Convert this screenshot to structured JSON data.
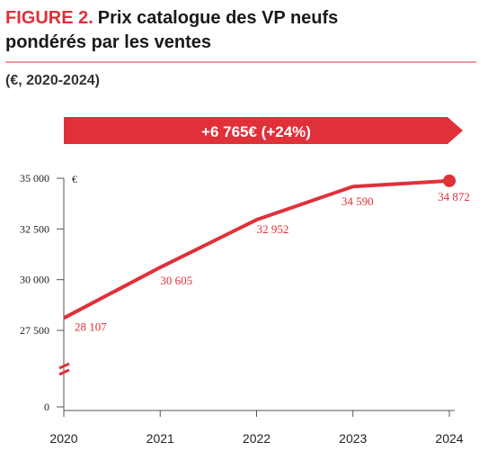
{
  "header": {
    "figure_label": "FIGURE 2.",
    "title_line1": "Prix catalogue des VP neufs",
    "title_line2": "pondérés par les ventes",
    "subtitle": "(€, 2020-2024)"
  },
  "banner": {
    "text": "+6 765€  (+24%)"
  },
  "colors": {
    "accent": "#e0303a",
    "axis": "#555555",
    "text": "#222222"
  },
  "chart_data": {
    "type": "line",
    "title": "Prix catalogue des VP neufs pondérés par les ventes",
    "ylabel": "€",
    "x": [
      "2020",
      "2021",
      "2022",
      "2023",
      "2024"
    ],
    "series": [
      {
        "values": [
          28107,
          30605,
          32952,
          34590,
          34872
        ],
        "labels": [
          "28 107",
          "30 605",
          "32 952",
          "34 590",
          "34 872"
        ]
      }
    ],
    "yticks": [
      {
        "value": 0,
        "label": "0"
      },
      {
        "value": 27500,
        "label": "27 500"
      },
      {
        "value": 30000,
        "label": "30 000"
      },
      {
        "value": 32500,
        "label": "32 500"
      },
      {
        "value": 35000,
        "label": "35 000"
      }
    ],
    "ylim": [
      0,
      35000
    ],
    "axis_break": true,
    "grid": false,
    "end_marker": true
  }
}
